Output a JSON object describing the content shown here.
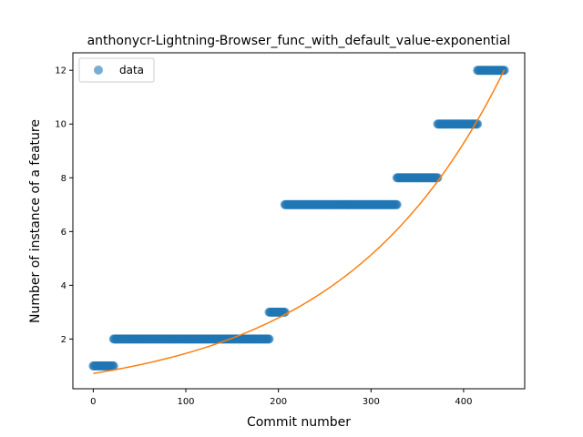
{
  "chart_data": {
    "type": "scatter",
    "title": "anthonycr-Lightning-Browser_func_with_default_value-exponential",
    "xlabel": "Commit number",
    "ylabel": "Number of instance of a feature",
    "xlim": [
      -22,
      466
    ],
    "ylim": [
      0.15,
      12.65
    ],
    "xticks": [
      0,
      100,
      200,
      300,
      400
    ],
    "yticks": [
      2,
      4,
      6,
      8,
      10,
      12
    ],
    "legend": {
      "placement": "top-left",
      "entries": [
        "data"
      ]
    },
    "colors": {
      "data": "#1f77b4",
      "fit": "#ff7f0e"
    },
    "series": [
      {
        "name": "data",
        "kind": "scatter",
        "segments": [
          {
            "x_start": 0,
            "x_end": 22,
            "y": 1
          },
          {
            "x_start": 22,
            "x_end": 190,
            "y": 2
          },
          {
            "x_start": 190,
            "x_end": 207,
            "y": 3
          },
          {
            "x_start": 207,
            "x_end": 328,
            "y": 7
          },
          {
            "x_start": 328,
            "x_end": 372,
            "y": 8
          },
          {
            "x_start": 372,
            "x_end": 415,
            "y": 10
          },
          {
            "x_start": 415,
            "x_end": 444,
            "y": 12
          }
        ]
      },
      {
        "kind": "line",
        "model": "exponential",
        "a": 0.963,
        "b": 0.00573,
        "c": -0.243,
        "x_range": [
          0,
          444
        ]
      }
    ]
  }
}
